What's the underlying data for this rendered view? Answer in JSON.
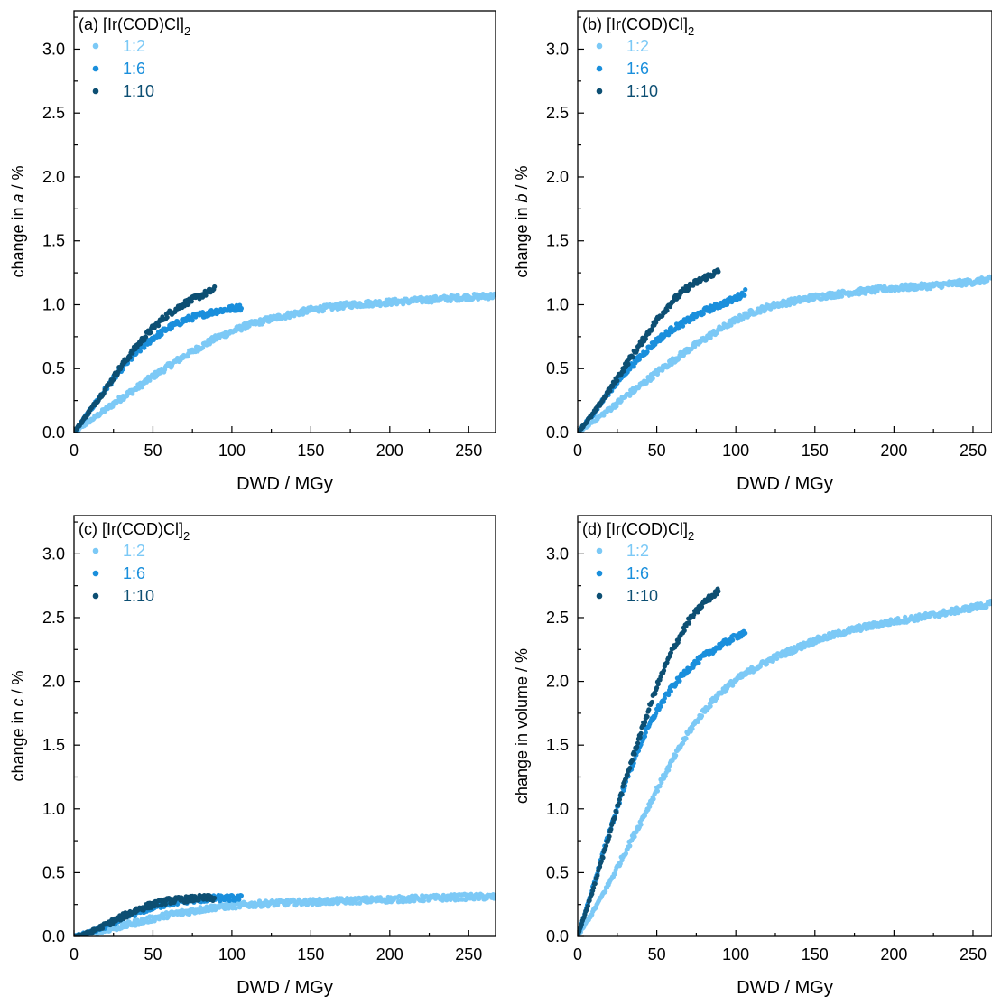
{
  "colors": {
    "series_1_2": "#7cc9f6",
    "series_1_6": "#1a8fdc",
    "series_1_10": "#0d4f73",
    "axes": "#000000"
  },
  "chart_data": [
    {
      "type": "scatter",
      "panel_label": "(a) [Ir(COD)Cl]",
      "panel_label_sub": "2",
      "xlabel": "DWD / MGy",
      "ylabel_pre": "change in ",
      "ylabel_var": "a",
      "ylabel_post": " / %",
      "xlim": [
        0,
        267
      ],
      "ylim": [
        0,
        3.3
      ],
      "xticks": [
        "0",
        "50",
        "100",
        "150",
        "200",
        "250"
      ],
      "yticks": [
        "0.0",
        "0.5",
        "1.0",
        "1.5",
        "2.0",
        "2.5",
        "3.0"
      ],
      "legend_position": "top-left",
      "series": [
        {
          "name": "1:2",
          "x": [
            0,
            10,
            20,
            30,
            40,
            50,
            60,
            70,
            80,
            90,
            100,
            110,
            125,
            150,
            175,
            200,
            225,
            250,
            267
          ],
          "y": [
            0,
            0.09,
            0.18,
            0.27,
            0.35,
            0.44,
            0.52,
            0.6,
            0.67,
            0.74,
            0.79,
            0.84,
            0.89,
            0.96,
            1.0,
            1.02,
            1.04,
            1.06,
            1.07
          ]
        },
        {
          "name": "1:6",
          "x": [
            0,
            10,
            20,
            30,
            40,
            50,
            60,
            70,
            80,
            90,
            100,
            106
          ],
          "y": [
            0,
            0.17,
            0.34,
            0.5,
            0.63,
            0.74,
            0.82,
            0.88,
            0.92,
            0.95,
            0.97,
            0.98
          ]
        },
        {
          "name": "1:10",
          "x": [
            0,
            10,
            20,
            30,
            40,
            50,
            60,
            70,
            80,
            89
          ],
          "y": [
            0,
            0.17,
            0.34,
            0.52,
            0.68,
            0.82,
            0.93,
            1.01,
            1.07,
            1.12
          ]
        }
      ]
    },
    {
      "type": "scatter",
      "panel_label": "(b) [Ir(COD)Cl]",
      "panel_label_sub": "2",
      "xlabel": "DWD / MGy",
      "ylabel_pre": "change in ",
      "ylabel_var": "b",
      "ylabel_post": " / %",
      "xlim": [
        0,
        262
      ],
      "ylim": [
        0,
        3.3
      ],
      "xticks": [
        "0",
        "50",
        "100",
        "150",
        "200",
        "250"
      ],
      "yticks": [
        "0.0",
        "0.5",
        "1.0",
        "1.5",
        "2.0",
        "2.5",
        "3.0"
      ],
      "legend_position": "top-left",
      "series": [
        {
          "name": "1:2",
          "x": [
            0,
            10,
            20,
            30,
            40,
            50,
            60,
            70,
            80,
            90,
            100,
            110,
            125,
            150,
            175,
            200,
            225,
            250,
            262
          ],
          "y": [
            0,
            0.09,
            0.18,
            0.28,
            0.37,
            0.47,
            0.56,
            0.65,
            0.73,
            0.81,
            0.88,
            0.94,
            1.0,
            1.06,
            1.1,
            1.13,
            1.15,
            1.18,
            1.2
          ]
        },
        {
          "name": "1:6",
          "x": [
            0,
            10,
            20,
            30,
            40,
            50,
            60,
            70,
            80,
            90,
            100,
            106
          ],
          "y": [
            0,
            0.15,
            0.32,
            0.47,
            0.6,
            0.72,
            0.81,
            0.88,
            0.95,
            1.0,
            1.05,
            1.1
          ]
        },
        {
          "name": "1:10",
          "x": [
            0,
            10,
            20,
            30,
            40,
            50,
            60,
            70,
            80,
            89
          ],
          "y": [
            0,
            0.15,
            0.33,
            0.52,
            0.7,
            0.88,
            1.03,
            1.14,
            1.21,
            1.26
          ]
        }
      ]
    },
    {
      "type": "scatter",
      "panel_label": "(c) [Ir(COD)Cl]",
      "panel_label_sub": "2",
      "xlabel": "DWD / MGy",
      "ylabel_pre": "change in ",
      "ylabel_var": "c",
      "ylabel_post": " / %",
      "xlim": [
        0,
        267
      ],
      "ylim": [
        0,
        3.3
      ],
      "xticks": [
        "0",
        "50",
        "100",
        "150",
        "200",
        "250"
      ],
      "yticks": [
        "0.0",
        "0.5",
        "1.0",
        "1.5",
        "2.0",
        "2.5",
        "3.0"
      ],
      "legend_position": "top-left",
      "series": [
        {
          "name": "1:2",
          "x": [
            0,
            10,
            20,
            30,
            40,
            50,
            60,
            70,
            80,
            90,
            100,
            125,
            150,
            175,
            200,
            225,
            250,
            267
          ],
          "y": [
            0,
            0.02,
            0.05,
            0.08,
            0.11,
            0.14,
            0.17,
            0.19,
            0.21,
            0.23,
            0.24,
            0.26,
            0.27,
            0.28,
            0.29,
            0.3,
            0.31,
            0.31
          ]
        },
        {
          "name": "1:6",
          "x": [
            0,
            10,
            20,
            30,
            40,
            50,
            60,
            70,
            80,
            90,
            100,
            106
          ],
          "y": [
            0,
            0.03,
            0.08,
            0.14,
            0.19,
            0.23,
            0.26,
            0.28,
            0.29,
            0.3,
            0.3,
            0.3
          ]
        },
        {
          "name": "1:10",
          "x": [
            0,
            10,
            20,
            30,
            40,
            50,
            60,
            70,
            80,
            89
          ],
          "y": [
            0,
            0.03,
            0.09,
            0.15,
            0.21,
            0.25,
            0.28,
            0.29,
            0.3,
            0.3
          ]
        }
      ]
    },
    {
      "type": "scatter",
      "panel_label": "(d) [Ir(COD)Cl]",
      "panel_label_sub": "2",
      "xlabel": "DWD / MGy",
      "ylabel_pre": "change in volume / %",
      "ylabel_var": "",
      "ylabel_post": "",
      "xlim": [
        0,
        262
      ],
      "ylim": [
        0,
        3.3
      ],
      "xticks": [
        "0",
        "50",
        "100",
        "150",
        "200",
        "250"
      ],
      "yticks": [
        "0.0",
        "0.5",
        "1.0",
        "1.5",
        "2.0",
        "2.5",
        "3.0"
      ],
      "legend_position": "top-left",
      "series": [
        {
          "name": "1:2",
          "x": [
            0,
            10,
            20,
            30,
            40,
            50,
            60,
            70,
            80,
            90,
            100,
            110,
            125,
            150,
            175,
            200,
            225,
            250,
            262
          ],
          "y": [
            0,
            0.2,
            0.42,
            0.66,
            0.9,
            1.15,
            1.38,
            1.6,
            1.77,
            1.91,
            2.01,
            2.09,
            2.19,
            2.32,
            2.41,
            2.47,
            2.52,
            2.58,
            2.61
          ]
        },
        {
          "name": "1:6",
          "x": [
            0,
            10,
            20,
            30,
            40,
            50,
            60,
            70,
            80,
            90,
            100,
            106
          ],
          "y": [
            0,
            0.4,
            0.82,
            1.2,
            1.52,
            1.77,
            1.96,
            2.1,
            2.2,
            2.28,
            2.35,
            2.39
          ]
        },
        {
          "name": "1:10",
          "x": [
            0,
            10,
            20,
            30,
            40,
            50,
            60,
            70,
            80,
            89
          ],
          "y": [
            0,
            0.38,
            0.8,
            1.22,
            1.6,
            1.96,
            2.25,
            2.47,
            2.62,
            2.71
          ]
        }
      ]
    }
  ]
}
